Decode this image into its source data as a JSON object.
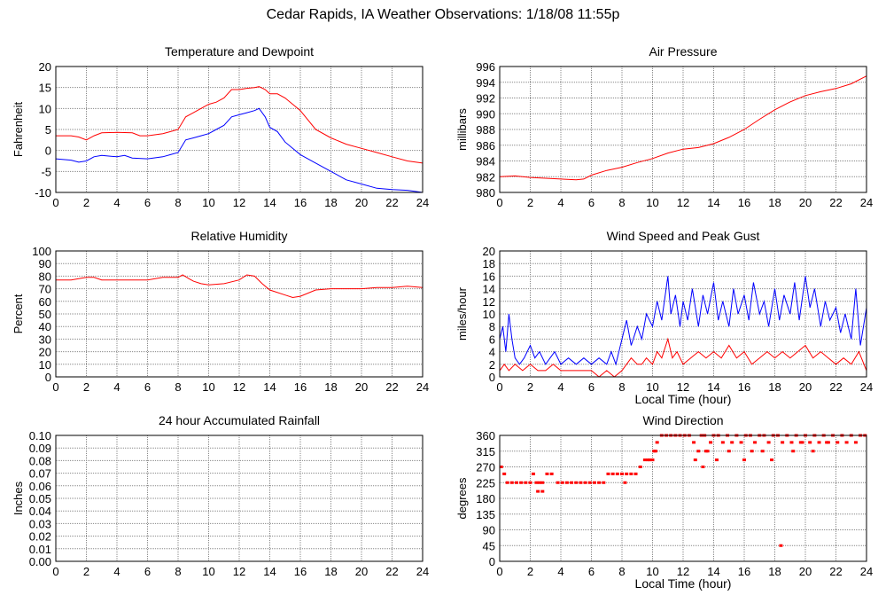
{
  "page": {
    "title": "Cedar Rapids, IA Weather Observations: 1/18/08 11:55p"
  },
  "colors": {
    "red": "#ff0000",
    "blue": "#0000ff",
    "grid": "#888888",
    "frame": "#000000"
  },
  "chart_data": [
    {
      "id": "temp",
      "type": "line",
      "title": "Temperature and Dewpoint",
      "xlabel": "",
      "ylabel": "Fahrenheit",
      "xlim": [
        0,
        24
      ],
      "ylim": [
        -10,
        20
      ],
      "xticks": [
        0,
        2,
        4,
        6,
        8,
        10,
        12,
        14,
        16,
        18,
        20,
        22,
        24
      ],
      "yticks": [
        -10,
        -5,
        0,
        5,
        10,
        15,
        20
      ],
      "grid": true,
      "series": [
        {
          "color": "#ff0000",
          "x": [
            0,
            1,
            1.5,
            2,
            2.5,
            3,
            4,
            5,
            5.5,
            6,
            7,
            7.5,
            8,
            8.5,
            9,
            9.5,
            10,
            10.5,
            11,
            11.5,
            12,
            12.5,
            13,
            13.3,
            13.7,
            14,
            14.5,
            15,
            16,
            17,
            18,
            19,
            20,
            21,
            22,
            23,
            24
          ],
          "y": [
            3.5,
            3.5,
            3.2,
            2.5,
            3.5,
            4.2,
            4.3,
            4.2,
            3.5,
            3.5,
            4.0,
            4.5,
            5.0,
            8.0,
            9.0,
            10.0,
            11.0,
            11.5,
            12.5,
            14.5,
            14.5,
            14.8,
            15.0,
            15.2,
            14.5,
            13.5,
            13.5,
            12.5,
            9.5,
            5.0,
            3.0,
            1.5,
            0.5,
            -0.5,
            -1.5,
            -2.5,
            -3.0
          ]
        },
        {
          "color": "#0000ff",
          "x": [
            0,
            1,
            1.5,
            2,
            2.5,
            3,
            4,
            4.5,
            5,
            6,
            7,
            7.5,
            8,
            8.5,
            9,
            9.5,
            10,
            10.5,
            11,
            11.5,
            12,
            12.5,
            13,
            13.3,
            13.7,
            14,
            14.5,
            15,
            16,
            17,
            18,
            19,
            20,
            21,
            22,
            23,
            24
          ],
          "y": [
            -2.0,
            -2.3,
            -2.8,
            -2.5,
            -1.5,
            -1.2,
            -1.5,
            -1.2,
            -1.8,
            -2.0,
            -1.5,
            -1.0,
            -0.5,
            2.5,
            3.0,
            3.5,
            4.0,
            5.0,
            6.0,
            8.0,
            8.5,
            9.0,
            9.5,
            10.0,
            8.0,
            5.5,
            4.5,
            2.0,
            -1.0,
            -3.0,
            -5.0,
            -7.0,
            -8.0,
            -9.0,
            -9.3,
            -9.5,
            -10.0
          ]
        }
      ]
    },
    {
      "id": "pressure",
      "type": "line",
      "title": "Air Pressure",
      "xlabel": "",
      "ylabel": "millibars",
      "xlim": [
        0,
        24
      ],
      "ylim": [
        980,
        996
      ],
      "xticks": [
        0,
        2,
        4,
        6,
        8,
        10,
        12,
        14,
        16,
        18,
        20,
        22,
        24
      ],
      "yticks": [
        980,
        982,
        984,
        986,
        988,
        990,
        992,
        994,
        996
      ],
      "grid": true,
      "series": [
        {
          "color": "#ff0000",
          "x": [
            0,
            1,
            2,
            3,
            4,
            5,
            5.5,
            6,
            7,
            8,
            9,
            10,
            11,
            12,
            13,
            14,
            15,
            16,
            17,
            18,
            19,
            20,
            21,
            22,
            23,
            24
          ],
          "y": [
            982.0,
            982.1,
            981.9,
            981.8,
            981.7,
            981.6,
            981.7,
            982.2,
            982.8,
            983.2,
            983.8,
            984.3,
            985.0,
            985.5,
            985.7,
            986.2,
            987.0,
            988.0,
            989.3,
            990.5,
            991.5,
            992.3,
            992.8,
            993.2,
            993.8,
            994.8
          ]
        }
      ]
    },
    {
      "id": "humidity",
      "type": "line",
      "title": "Relative Humidity",
      "xlabel": "",
      "ylabel": "Percent",
      "xlim": [
        0,
        24
      ],
      "ylim": [
        0,
        100
      ],
      "xticks": [
        0,
        2,
        4,
        6,
        8,
        10,
        12,
        14,
        16,
        18,
        20,
        22,
        24
      ],
      "yticks": [
        0,
        10,
        20,
        30,
        40,
        50,
        60,
        70,
        80,
        90,
        100
      ],
      "grid": true,
      "series": [
        {
          "color": "#ff0000",
          "x": [
            0,
            1,
            2,
            2.5,
            3,
            4,
            5,
            6,
            7,
            8,
            8.3,
            8.7,
            9,
            9.5,
            10,
            11,
            12,
            12.5,
            13,
            13.5,
            14,
            15,
            15.5,
            16,
            17,
            18,
            19,
            20,
            21,
            22,
            23,
            24
          ],
          "y": [
            77,
            77,
            79,
            79,
            77,
            77,
            77,
            77,
            79,
            79,
            81,
            78,
            76,
            74,
            73,
            74,
            77,
            81,
            80,
            74,
            69,
            65,
            63,
            64,
            69,
            70,
            70,
            70,
            71,
            71,
            72,
            71
          ]
        }
      ]
    },
    {
      "id": "wind",
      "type": "line",
      "title": "Wind Speed and Peak Gust",
      "xlabel": "Local Time (hour)",
      "ylabel": "miles/hour",
      "xlim": [
        0,
        24
      ],
      "ylim": [
        0,
        20
      ],
      "xticks": [
        0,
        2,
        4,
        6,
        8,
        10,
        12,
        14,
        16,
        18,
        20,
        22,
        24
      ],
      "yticks": [
        0,
        2,
        4,
        6,
        8,
        10,
        12,
        14,
        16,
        18,
        20
      ],
      "grid": true,
      "series": [
        {
          "color": "#0000ff",
          "x": [
            0,
            0.2,
            0.4,
            0.6,
            0.8,
            1.0,
            1.3,
            1.6,
            2.0,
            2.3,
            2.6,
            3.0,
            3.3,
            3.6,
            4.0,
            4.5,
            5.0,
            5.5,
            6.0,
            6.5,
            7.0,
            7.3,
            7.6,
            8.0,
            8.3,
            8.6,
            9.0,
            9.3,
            9.6,
            10.0,
            10.3,
            10.6,
            11.0,
            11.2,
            11.5,
            11.8,
            12.0,
            12.3,
            12.6,
            13.0,
            13.3,
            13.6,
            14.0,
            14.3,
            14.6,
            15.0,
            15.3,
            15.6,
            16.0,
            16.3,
            16.6,
            17.0,
            17.3,
            17.6,
            18.0,
            18.3,
            18.6,
            19.0,
            19.3,
            19.6,
            20.0,
            20.3,
            20.6,
            21.0,
            21.3,
            21.6,
            22.0,
            22.3,
            22.6,
            23.0,
            23.3,
            23.6,
            24.0
          ],
          "y": [
            6,
            8,
            4,
            10,
            6,
            3,
            2,
            3,
            5,
            3,
            4,
            2,
            3,
            4,
            2,
            3,
            2,
            3,
            2,
            3,
            2,
            4,
            2,
            6,
            9,
            5,
            8,
            6,
            10,
            8,
            12,
            9,
            16,
            10,
            13,
            8,
            12,
            9,
            14,
            8,
            13,
            10,
            15,
            9,
            12,
            8,
            14,
            10,
            13,
            9,
            15,
            10,
            12,
            8,
            14,
            9,
            13,
            10,
            15,
            9,
            16,
            11,
            14,
            8,
            12,
            9,
            11,
            7,
            10,
            6,
            14,
            5,
            11
          ]
        },
        {
          "color": "#ff0000",
          "x": [
            0,
            0.3,
            0.6,
            1.0,
            1.5,
            2.0,
            2.5,
            3.0,
            3.5,
            4.0,
            4.5,
            5.0,
            5.5,
            6.0,
            6.5,
            7.0,
            7.5,
            8.0,
            8.3,
            8.6,
            9.0,
            9.3,
            9.6,
            10.0,
            10.3,
            10.6,
            11.0,
            11.3,
            11.6,
            12.0,
            12.5,
            13.0,
            13.5,
            14.0,
            14.5,
            15.0,
            15.5,
            16.0,
            16.5,
            17.0,
            17.5,
            18.0,
            18.5,
            19.0,
            19.5,
            20.0,
            20.5,
            21.0,
            21.5,
            22.0,
            22.5,
            23.0,
            23.5,
            24.0
          ],
          "y": [
            1,
            2,
            1,
            2,
            1,
            2,
            1,
            1,
            2,
            1,
            1,
            1,
            1,
            1,
            0,
            1,
            0,
            1,
            2,
            3,
            2,
            2,
            3,
            2,
            4,
            3,
            6,
            3,
            4,
            2,
            3,
            4,
            3,
            4,
            3,
            5,
            3,
            4,
            2,
            3,
            4,
            3,
            4,
            3,
            4,
            5,
            3,
            4,
            3,
            2,
            3,
            2,
            4,
            1
          ]
        }
      ]
    },
    {
      "id": "rain",
      "type": "line",
      "title": "24 hour Accumulated Rainfall",
      "xlabel": "",
      "ylabel": "Inches",
      "xlim": [
        0,
        24
      ],
      "ylim": [
        0,
        0.1
      ],
      "xticks": [
        0,
        2,
        4,
        6,
        8,
        10,
        12,
        14,
        16,
        18,
        20,
        22,
        24
      ],
      "yticks": [
        "0.00",
        "0.01",
        "0.02",
        "0.03",
        "0.04",
        "0.05",
        "0.06",
        "0.07",
        "0.08",
        "0.09",
        "0.10"
      ],
      "grid": true,
      "series": [
        {
          "color": "#ff0000",
          "x": [
            0,
            24
          ],
          "y": [
            0,
            0
          ]
        }
      ]
    },
    {
      "id": "direction",
      "type": "scatter",
      "title": "Wind Direction",
      "xlabel": "Local Time (hour)",
      "ylabel": "degrees",
      "xlim": [
        0,
        24
      ],
      "ylim": [
        0,
        360
      ],
      "xticks": [
        0,
        2,
        4,
        6,
        8,
        10,
        12,
        14,
        16,
        18,
        20,
        22,
        24
      ],
      "yticks": [
        0,
        45,
        90,
        135,
        180,
        225,
        270,
        315,
        360
      ],
      "grid": true,
      "series": [
        {
          "color": "#ff0000",
          "x": [
            0.1,
            0.3,
            0.5,
            0.8,
            1.1,
            1.4,
            1.7,
            2.0,
            2.2,
            2.4,
            2.6,
            2.8,
            3.1,
            3.4,
            3.8,
            4.1,
            4.4,
            4.7,
            5.0,
            5.3,
            5.6,
            5.9,
            6.2,
            6.5,
            6.8,
            7.1,
            7.4,
            7.7,
            8.0,
            8.3,
            8.6,
            8.9,
            9.2,
            9.5,
            9.8,
            10.1,
            10.3,
            10.6,
            10.9,
            11.2,
            11.5,
            11.8,
            12.1,
            12.4,
            12.7,
            13.0,
            13.2,
            13.4,
            13.6,
            13.8,
            14.0,
            14.3,
            14.6,
            14.9,
            15.2,
            15.5,
            15.8,
            16.1,
            16.4,
            16.7,
            17.0,
            17.3,
            17.6,
            17.9,
            18.2,
            18.5,
            18.8,
            19.1,
            19.4,
            19.7,
            20.0,
            20.3,
            20.6,
            20.9,
            21.2,
            21.5,
            21.8,
            22.1,
            22.4,
            22.7,
            23.0,
            23.3,
            23.6,
            23.9,
            12.8,
            13.5,
            14.2,
            15.0,
            16.5,
            17.8,
            18.4,
            19.2,
            20.5,
            21.4,
            2.5,
            2.8,
            9.7,
            10.0,
            10.2,
            8.2,
            13.3,
            16.0,
            17.2,
            19.8
          ],
          "y": [
            270,
            250,
            225,
            225,
            225,
            225,
            225,
            225,
            250,
            225,
            225,
            225,
            250,
            250,
            225,
            225,
            225,
            225,
            225,
            225,
            225,
            225,
            225,
            225,
            225,
            250,
            250,
            250,
            250,
            250,
            250,
            250,
            270,
            290,
            290,
            315,
            340,
            360,
            360,
            360,
            360,
            360,
            360,
            360,
            340,
            315,
            360,
            360,
            315,
            340,
            360,
            360,
            340,
            360,
            340,
            360,
            340,
            360,
            360,
            340,
            360,
            360,
            340,
            360,
            360,
            340,
            360,
            340,
            360,
            340,
            360,
            340,
            360,
            340,
            360,
            340,
            360,
            340,
            360,
            340,
            360,
            340,
            360,
            360,
            290,
            315,
            290,
            315,
            315,
            290,
            45,
            315,
            315,
            340,
            200,
            200,
            290,
            290,
            315,
            225,
            270,
            290,
            315,
            340
          ]
        }
      ]
    }
  ]
}
